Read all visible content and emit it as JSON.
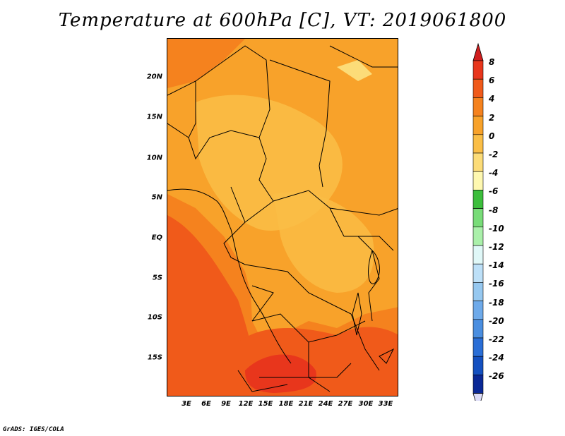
{
  "title": "Temperature at 600hPa [C], VT: 2019061800",
  "footer": "GrADS: IGES/COLA",
  "chart_data": {
    "type": "heatmap",
    "variable": "Temperature",
    "level": "600hPa",
    "units": "C",
    "valid_time": "2019061800",
    "lon_range": [
      0,
      35
    ],
    "lat_range": [
      -20,
      24
    ],
    "y_ticks": [
      "20N",
      "15N",
      "10N",
      "5N",
      "EQ",
      "5S",
      "10S",
      "15S"
    ],
    "x_ticks": [
      "3E",
      "6E",
      "9E",
      "12E",
      "15E",
      "18E",
      "21E",
      "24E",
      "27E",
      "30E",
      "33E"
    ],
    "colorbar": {
      "labels": [
        "8",
        "6",
        "4",
        "2",
        "0",
        "-2",
        "-4",
        "-6",
        "-8",
        "-10",
        "-12",
        "-14",
        "-16",
        "-18",
        "-20",
        "-22",
        "-24",
        "-26"
      ],
      "colors": [
        "#e8361c",
        "#f05a1a",
        "#f5821e",
        "#f8a22a",
        "#fabe46",
        "#fcdc78",
        "#fef8b0",
        "#3cbe3c",
        "#78dc78",
        "#aaf0aa",
        "#e0f8f8",
        "#bde0f8",
        "#96c8f0",
        "#6eaaea",
        "#4a8ee0",
        "#2a6ed6",
        "#1450c0",
        "#0a2896"
      ],
      "top_color": "#d01e1e",
      "bottom_color": "#dcdcf8"
    }
  }
}
